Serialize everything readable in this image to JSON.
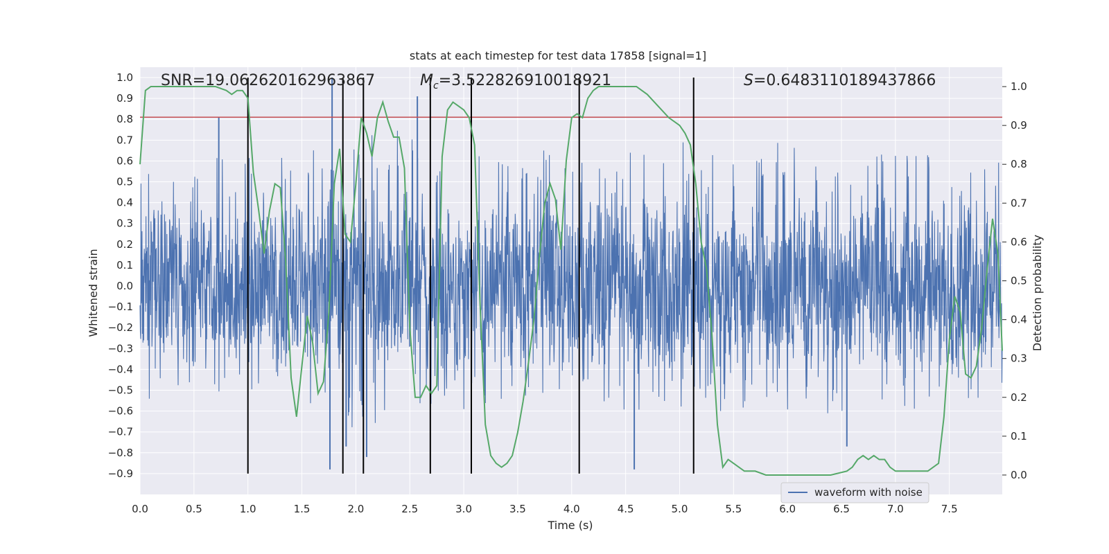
{
  "chart_data": {
    "type": "line",
    "title": "stats at each timestep for test data 17858 [signal=1]",
    "xlabel": "Time (s)",
    "ylabel": "Whitened strain",
    "y2label": "Detection probability",
    "xlim": [
      0.0,
      7.99
    ],
    "ylim": [
      -1.0,
      1.05
    ],
    "y2lim": [
      -0.05,
      1.05
    ],
    "xticks": [
      0.0,
      0.5,
      1.0,
      1.5,
      2.0,
      2.5,
      3.0,
      3.5,
      4.0,
      4.5,
      5.0,
      5.5,
      6.0,
      6.5,
      7.0,
      7.5
    ],
    "xtick_labels": [
      "0.0",
      "0.5",
      "1.0",
      "1.5",
      "2.0",
      "2.5",
      "3.0",
      "3.5",
      "4.0",
      "4.5",
      "5.0",
      "5.5",
      "6.0",
      "6.5",
      "7.0",
      "7.5"
    ],
    "yticks": [
      1.0,
      0.9,
      0.8,
      0.7,
      0.6,
      0.5,
      0.4,
      0.3,
      0.2,
      0.1,
      0.0,
      -0.1,
      -0.2,
      -0.3,
      -0.4,
      -0.5,
      -0.6,
      -0.7,
      -0.8,
      -0.9
    ],
    "ytick_labels": [
      "1.0",
      "0.9",
      "0.8",
      "0.7",
      "0.6",
      "0.5",
      "0.4",
      "0.3",
      "0.2",
      "0.1",
      "0.0",
      "−0.1",
      "−0.2",
      "−0.3",
      "−0.4",
      "−0.5",
      "−0.6",
      "−0.7",
      "−0.8",
      "−0.9"
    ],
    "y2ticks": [
      1.0,
      0.9,
      0.8,
      0.7,
      0.6,
      0.5,
      0.4,
      0.3,
      0.2,
      0.1,
      0.0
    ],
    "y2tick_labels": [
      "1.0",
      "0.9",
      "0.8",
      "0.7",
      "0.6",
      "0.5",
      "0.4",
      "0.3",
      "0.2",
      "0.1",
      "0.0"
    ],
    "grid": true,
    "legend": {
      "entries": [
        "waveform with noise"
      ],
      "position": "lower-right"
    },
    "annotations": {
      "snr": {
        "prefix": "SNR=",
        "value": "19.062620162963867"
      },
      "mc": {
        "symbol": "M",
        "subscript": "c",
        "value": "=3.522826910018921"
      },
      "s": {
        "symbol": "S",
        "value": "=0.6483110189437866"
      }
    },
    "threshold": {
      "y": 0.81,
      "color": "#c44e52"
    },
    "vertical_markers": {
      "x": [
        1.0,
        1.88,
        2.07,
        2.69,
        3.07,
        4.07,
        5.13
      ],
      "y_range": [
        -0.9,
        1.0
      ]
    },
    "strain_envelope": {
      "x": [
        0.0,
        0.5,
        1.0,
        1.5,
        2.0,
        2.5,
        3.0,
        3.5,
        4.0,
        4.5,
        5.0,
        5.5,
        6.0,
        6.5,
        7.0,
        7.5,
        7.99
      ],
      "y_max": [
        0.6,
        0.65,
        0.65,
        0.65,
        0.75,
        0.75,
        0.65,
        0.7,
        0.65,
        0.65,
        0.7,
        0.65,
        0.7,
        0.65,
        0.65,
        0.65,
        0.6
      ],
      "y_min": [
        -0.55,
        -0.6,
        -0.55,
        -0.55,
        -0.75,
        -0.6,
        -0.6,
        -0.6,
        -0.6,
        -0.6,
        -0.6,
        -0.6,
        -0.6,
        -0.65,
        -0.6,
        -0.6,
        -0.55
      ],
      "noise_amplitude": 0.3,
      "peaks": [
        {
          "x": 1.78,
          "y": 1.0
        },
        {
          "x": 1.76,
          "y": -0.88
        },
        {
          "x": 0.73,
          "y": 0.81
        },
        {
          "x": 2.57,
          "y": 0.91
        },
        {
          "x": 4.58,
          "y": -0.88
        },
        {
          "x": 1.91,
          "y": -0.77
        },
        {
          "x": 2.1,
          "y": -0.82
        },
        {
          "x": 6.55,
          "y": -0.77
        }
      ],
      "color": "#4c72b0"
    },
    "series": [
      {
        "name": "waveform with noise",
        "axis": "left",
        "color": "#4c72b0"
      },
      {
        "axis": "right",
        "color": "#55a868",
        "x": [
          0.0,
          0.05,
          0.1,
          0.2,
          0.3,
          0.4,
          0.5,
          0.6,
          0.7,
          0.8,
          0.85,
          0.9,
          0.95,
          1.0,
          1.05,
          1.1,
          1.15,
          1.2,
          1.25,
          1.3,
          1.35,
          1.4,
          1.45,
          1.5,
          1.55,
          1.6,
          1.65,
          1.7,
          1.75,
          1.8,
          1.85,
          1.9,
          1.95,
          2.0,
          2.05,
          2.1,
          2.15,
          2.2,
          2.25,
          2.3,
          2.35,
          2.4,
          2.45,
          2.5,
          2.55,
          2.6,
          2.65,
          2.7,
          2.75,
          2.8,
          2.85,
          2.9,
          2.95,
          3.0,
          3.05,
          3.1,
          3.15,
          3.2,
          3.25,
          3.3,
          3.35,
          3.4,
          3.45,
          3.5,
          3.55,
          3.6,
          3.65,
          3.7,
          3.75,
          3.8,
          3.85,
          3.9,
          3.95,
          4.0,
          4.05,
          4.1,
          4.15,
          4.2,
          4.25,
          4.3,
          4.35,
          4.4,
          4.5,
          4.6,
          4.7,
          4.8,
          4.9,
          5.0,
          5.05,
          5.1,
          5.15,
          5.2,
          5.25,
          5.3,
          5.35,
          5.4,
          5.45,
          5.5,
          5.55,
          5.6,
          5.65,
          5.7,
          5.8,
          6.0,
          6.2,
          6.4,
          6.55,
          6.6,
          6.65,
          6.7,
          6.75,
          6.8,
          6.85,
          6.9,
          6.95,
          7.0,
          7.1,
          7.2,
          7.3,
          7.4,
          7.45,
          7.5,
          7.55,
          7.6,
          7.65,
          7.7,
          7.75,
          7.8,
          7.85,
          7.9,
          7.95,
          7.99
        ],
        "y": [
          0.8,
          0.99,
          1.0,
          1.0,
          1.0,
          1.0,
          1.0,
          1.0,
          1.0,
          0.99,
          0.98,
          0.99,
          0.99,
          0.97,
          0.78,
          0.68,
          0.57,
          0.68,
          0.75,
          0.74,
          0.55,
          0.25,
          0.15,
          0.28,
          0.41,
          0.34,
          0.21,
          0.24,
          0.42,
          0.75,
          0.84,
          0.62,
          0.6,
          0.75,
          0.92,
          0.88,
          0.82,
          0.92,
          0.96,
          0.91,
          0.87,
          0.87,
          0.79,
          0.38,
          0.2,
          0.2,
          0.23,
          0.21,
          0.23,
          0.82,
          0.94,
          0.96,
          0.95,
          0.94,
          0.92,
          0.85,
          0.45,
          0.13,
          0.05,
          0.03,
          0.02,
          0.03,
          0.05,
          0.11,
          0.19,
          0.29,
          0.4,
          0.56,
          0.7,
          0.75,
          0.71,
          0.58,
          0.81,
          0.92,
          0.93,
          0.92,
          0.97,
          0.99,
          1.0,
          1.0,
          1.0,
          1.0,
          1.0,
          1.0,
          0.98,
          0.95,
          0.92,
          0.9,
          0.88,
          0.85,
          0.75,
          0.6,
          0.53,
          0.36,
          0.13,
          0.02,
          0.04,
          0.03,
          0.02,
          0.01,
          0.01,
          0.01,
          0.0,
          0.0,
          0.0,
          0.0,
          0.01,
          0.02,
          0.04,
          0.05,
          0.04,
          0.05,
          0.04,
          0.04,
          0.02,
          0.01,
          0.01,
          0.01,
          0.01,
          0.03,
          0.15,
          0.35,
          0.46,
          0.42,
          0.26,
          0.25,
          0.28,
          0.38,
          0.53,
          0.66,
          0.57,
          0.32
        ]
      }
    ]
  }
}
